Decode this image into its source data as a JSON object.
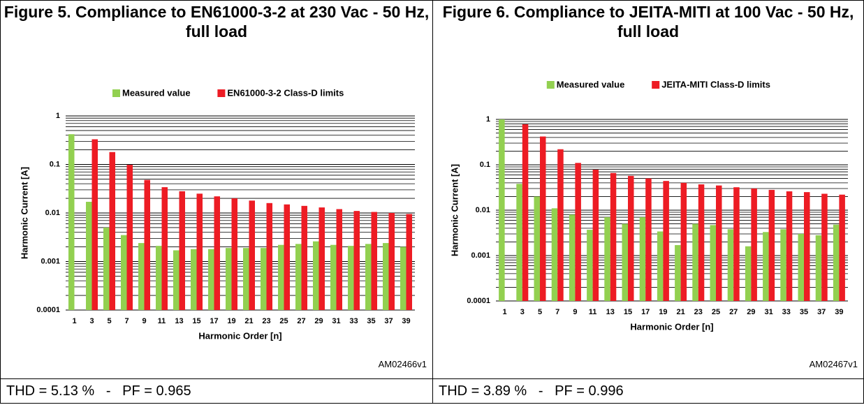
{
  "chart_data": [
    {
      "type": "bar",
      "title": "Figure 5. Compliance to EN61000-3-2 at 230 Vac - 50 Hz, full load",
      "xlabel": "Harmonic Order [n]",
      "ylabel": "Harmonic Current [A]",
      "categories": [
        "1",
        "3",
        "5",
        "7",
        "9",
        "11",
        "13",
        "15",
        "17",
        "19",
        "21",
        "23",
        "25",
        "27",
        "29",
        "31",
        "33",
        "35",
        "37",
        "39"
      ],
      "series": [
        {
          "name": "Measured value",
          "color": "#92d050",
          "values": [
            0.42,
            0.017,
            0.005,
            0.0035,
            0.0024,
            0.0021,
            0.0017,
            0.0018,
            0.0018,
            0.0019,
            0.0019,
            0.0019,
            0.0022,
            0.0023,
            0.0026,
            0.0022,
            0.0021,
            0.0023,
            0.0024,
            0.002
          ]
        },
        {
          "name": "EN61000-3-2 Class-D limits",
          "color": "#ed1c24",
          "values": [
            null,
            0.33,
            0.18,
            0.098,
            0.048,
            0.034,
            0.028,
            0.025,
            0.022,
            0.02,
            0.018,
            0.016,
            0.015,
            0.014,
            0.013,
            0.012,
            0.011,
            0.0105,
            0.01,
            0.0095
          ]
        }
      ],
      "yscale": "log",
      "ylim": [
        0.0001,
        1
      ],
      "yticks": [
        0.0001,
        0.001,
        0.01,
        0.1,
        1
      ],
      "grid": true,
      "minor_grid": true,
      "legend": "top",
      "note": "AM02466v1",
      "footer": "THD = 5.13 %   -   PF = 0.965"
    },
    {
      "type": "bar",
      "title": "Figure 6. Compliance to JEITA-MITI at 100 Vac - 50 Hz, full load",
      "xlabel": "Harmonic Order [n]",
      "ylabel": "Harmonic Current [A]",
      "categories": [
        "1",
        "3",
        "5",
        "7",
        "9",
        "11",
        "13",
        "15",
        "17",
        "19",
        "21",
        "23",
        "25",
        "27",
        "29",
        "31",
        "33",
        "35",
        "37",
        "39"
      ],
      "series": [
        {
          "name": "Measured value",
          "color": "#92d050",
          "values": [
            1.0,
            0.038,
            0.02,
            0.011,
            0.008,
            0.0037,
            0.007,
            0.005,
            0.007,
            0.0034,
            0.0017,
            0.005,
            0.0047,
            0.0038,
            0.0016,
            0.0033,
            0.0038,
            0.003,
            0.0028,
            0.0048
          ]
        },
        {
          "name": "JEITA-MITI Class-D limits",
          "color": "#ed1c24",
          "values": [
            null,
            0.78,
            0.42,
            0.22,
            0.11,
            0.078,
            0.066,
            0.057,
            0.05,
            0.044,
            0.04,
            0.037,
            0.035,
            0.032,
            0.03,
            0.028,
            0.026,
            0.025,
            0.023,
            0.022
          ]
        }
      ],
      "yscale": "log",
      "ylim": [
        0.0001,
        1
      ],
      "yticks": [
        0.0001,
        0.001,
        0.01,
        0.1,
        1
      ],
      "grid": true,
      "minor_grid": true,
      "legend": "top",
      "note": "AM02467v1",
      "footer": "THD = 3.89 %   -   PF = 0.996"
    }
  ]
}
